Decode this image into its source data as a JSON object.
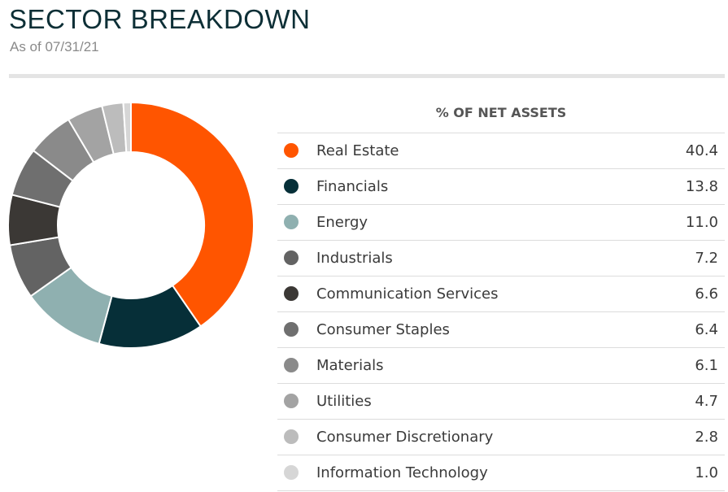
{
  "header": {
    "title": "SECTOR BREAKDOWN",
    "subtitle": "As of 07/31/21"
  },
  "table": {
    "column_header": "% OF NET ASSETS"
  },
  "chart_data": {
    "type": "pie",
    "style": "donut",
    "title": "SECTOR BREAKDOWN",
    "subtitle": "As of 07/31/21",
    "value_label": "% OF NET ASSETS",
    "categories": [
      "Real Estate",
      "Financials",
      "Energy",
      "Industrials",
      "Communication Services",
      "Consumer Staples",
      "Materials",
      "Utilities",
      "Consumer Discretionary",
      "Information Technology"
    ],
    "values": [
      40.4,
      13.8,
      11.0,
      7.2,
      6.6,
      6.4,
      6.1,
      4.7,
      2.8,
      1.0
    ],
    "display_values": [
      "40.4",
      "13.8",
      "11.0",
      "7.2",
      "6.6",
      "6.4",
      "6.1",
      "4.7",
      "2.8",
      "1.0"
    ],
    "colors": [
      "#ff5500",
      "#062f38",
      "#8fb0b0",
      "#636363",
      "#3b3835",
      "#6f6f6f",
      "#8a8a8a",
      "#a3a3a3",
      "#bcbcbc",
      "#d6d6d6"
    ],
    "legend": "right"
  }
}
